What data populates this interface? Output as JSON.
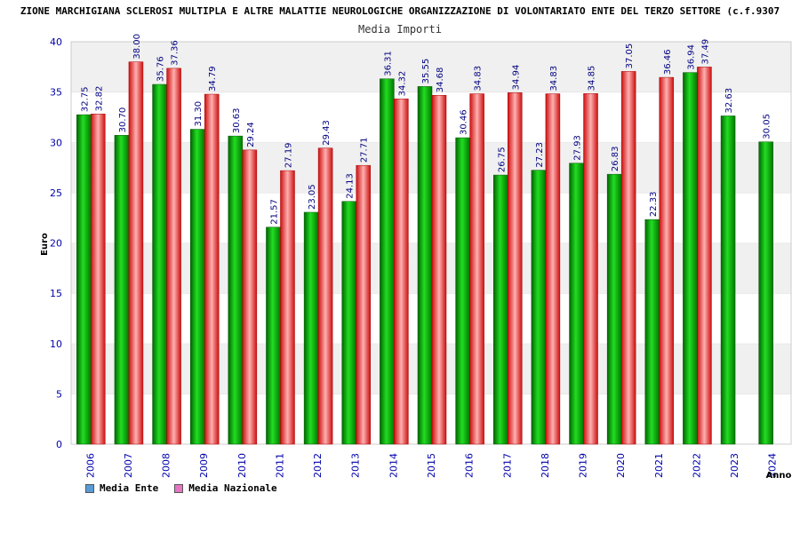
{
  "header": {
    "title": "ZIONE MARCHIGIANA SCLEROSI MULTIPLA E ALTRE MALATTIE NEUROLOGICHE ORGANIZZAZIONE DI VOLONTARIATO ENTE DEL TERZO SETTORE (c.f.9307",
    "subtitle": "Media Importi"
  },
  "legend": {
    "items": [
      {
        "label": "Media Ente",
        "color": "#5b9bd5"
      },
      {
        "label": "Media Nazionale",
        "color": "#e377c2"
      }
    ]
  },
  "chart_data": {
    "type": "bar",
    "title": "Media Importi",
    "xlabel": "Anno",
    "ylabel": "Euro",
    "ylim": [
      0,
      40
    ],
    "yticks": [
      0,
      5,
      10,
      15,
      20,
      25,
      30,
      35,
      40
    ],
    "categories": [
      "2006",
      "2007",
      "2008",
      "2009",
      "2010",
      "2011",
      "2012",
      "2013",
      "2014",
      "2015",
      "2016",
      "2017",
      "2018",
      "2019",
      "2020",
      "2021",
      "2022",
      "2023",
      "2024"
    ],
    "series": [
      {
        "name": "Media Ente",
        "color": "#00a000",
        "values": [
          32.75,
          30.7,
          35.76,
          31.3,
          30.63,
          21.57,
          23.05,
          24.13,
          36.31,
          35.55,
          30.46,
          26.75,
          27.23,
          27.93,
          26.83,
          22.33,
          36.94,
          32.63,
          30.05
        ],
        "labels": [
          "32.75",
          "30.70",
          "35.76",
          "31.30",
          "30.63",
          "21.57",
          "23.05",
          "24.13",
          "36.31",
          "35.55",
          "30.46",
          "26.75",
          "27.23",
          "27.93",
          "26.83",
          "22.33",
          "36.94",
          "32.63",
          "30.05"
        ]
      },
      {
        "name": "Media Nazionale",
        "color": "#e02020",
        "values": [
          32.82,
          38.0,
          37.36,
          34.79,
          29.24,
          27.19,
          29.43,
          27.71,
          34.32,
          34.68,
          34.83,
          34.94,
          34.83,
          34.85,
          37.05,
          36.46,
          37.49,
          null,
          null
        ],
        "labels": [
          "32.82",
          "38.00",
          "37.36",
          "34.79",
          "29.24",
          "27.19",
          "29.43",
          "27.71",
          "34.32",
          "34.68",
          "34.83",
          "34.94",
          "34.83",
          "34.85",
          "37.05",
          "36.46",
          "37.49",
          null,
          null
        ]
      }
    ],
    "grid": true,
    "legend_position": "bottom-left"
  }
}
